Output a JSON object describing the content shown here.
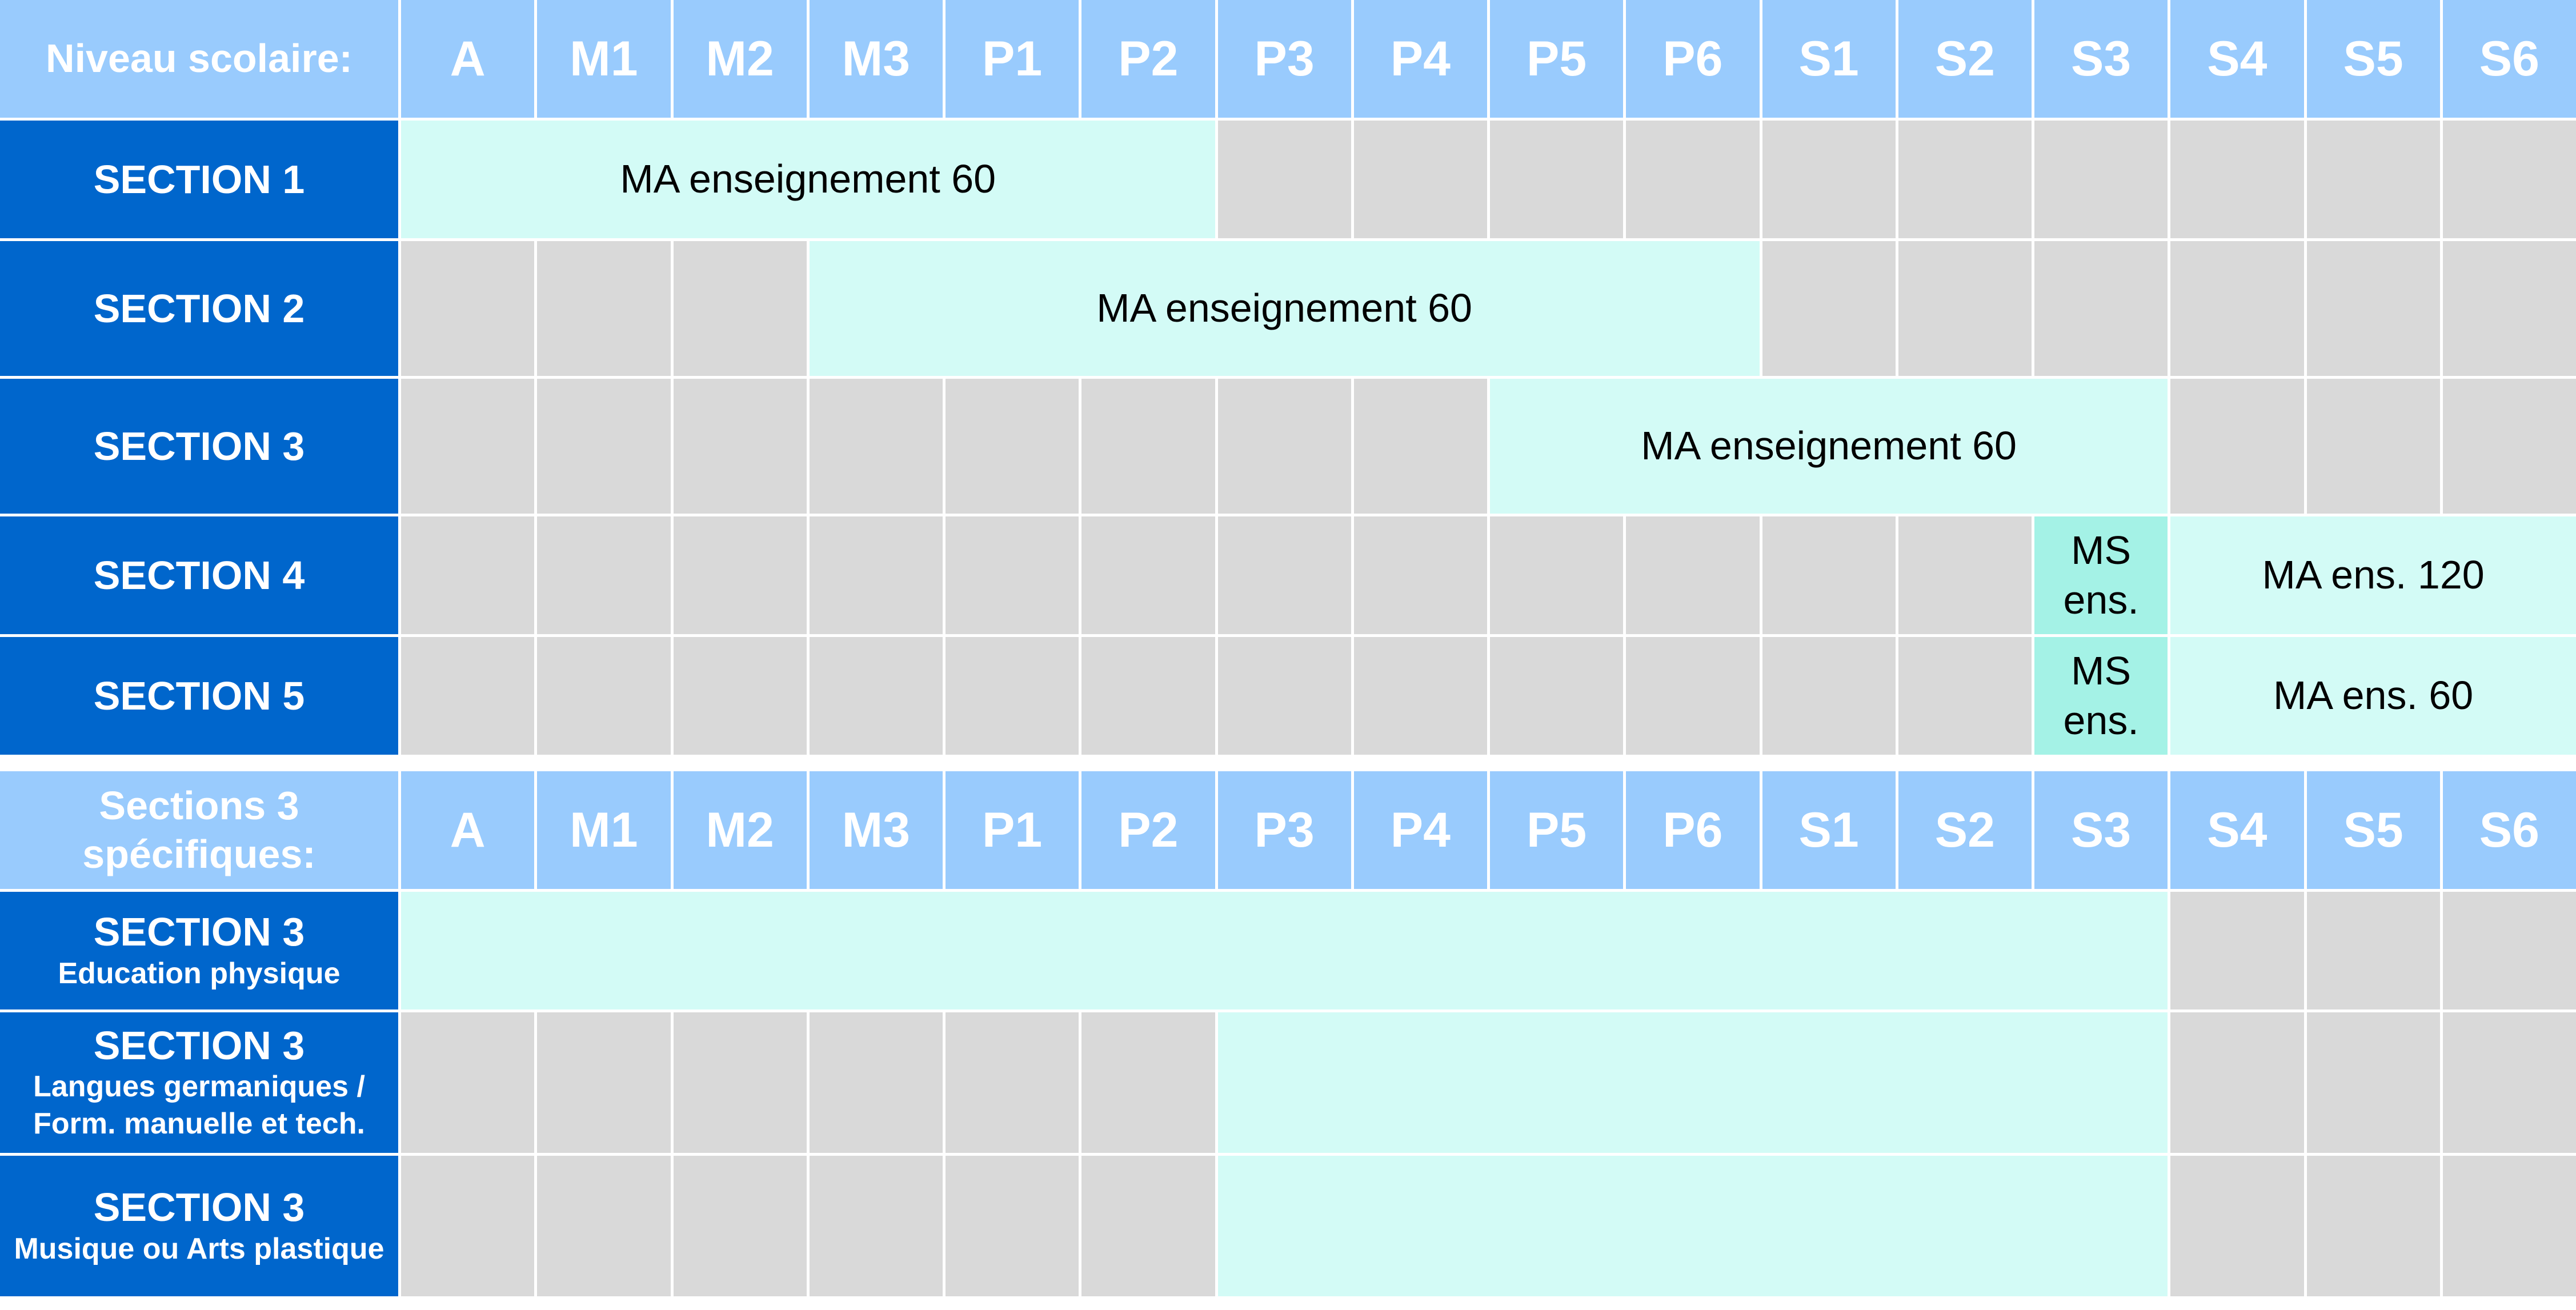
{
  "levels": [
    "A",
    "M1",
    "M2",
    "M3",
    "P1",
    "P2",
    "P3",
    "P4",
    "P5",
    "P6",
    "S1",
    "S2",
    "S3",
    "S4",
    "S5",
    "S6"
  ],
  "table1": {
    "header": "Niveau scolaire:",
    "rows": [
      {
        "label": "SECTION 1",
        "sub": "",
        "segments": [
          {
            "from": 1,
            "to": 6,
            "kind": "span",
            "text": "MA enseignement 60"
          }
        ]
      },
      {
        "label": "SECTION 2",
        "sub": "",
        "segments": [
          {
            "from": 4,
            "to": 10,
            "kind": "span",
            "text": "MA enseignement 60"
          }
        ]
      },
      {
        "label": "SECTION 3",
        "sub": "",
        "segments": [
          {
            "from": 9,
            "to": 13,
            "kind": "span",
            "text": "MA enseignement 60"
          }
        ]
      },
      {
        "label": "SECTION 4",
        "sub": "",
        "segments": [
          {
            "from": 13,
            "to": 13,
            "kind": "ms",
            "text": "MS ens."
          },
          {
            "from": 14,
            "to": 16,
            "kind": "span",
            "text": "MA ens. 120"
          }
        ]
      },
      {
        "label": "SECTION 5",
        "sub": "",
        "segments": [
          {
            "from": 13,
            "to": 13,
            "kind": "ms",
            "text": "MS ens."
          },
          {
            "from": 14,
            "to": 16,
            "kind": "span",
            "text": "MA ens. 60"
          }
        ]
      }
    ]
  },
  "table2": {
    "header": "Sections 3 spécifiques:",
    "rows": [
      {
        "label": "SECTION 3",
        "sub": "Education physique",
        "segments": [
          {
            "from": 1,
            "to": 13,
            "kind": "span",
            "text": ""
          }
        ]
      },
      {
        "label": "SECTION 3",
        "sub": "Langues germaniques / Form. manuelle et tech.",
        "segments": [
          {
            "from": 7,
            "to": 13,
            "kind": "span",
            "text": ""
          }
        ]
      },
      {
        "label": "SECTION 3",
        "sub": "Musique ou Arts plastique",
        "segments": [
          {
            "from": 7,
            "to": 13,
            "kind": "span",
            "text": ""
          }
        ]
      }
    ]
  },
  "colors": {
    "header": "#99cbfd",
    "row_label": "#0066cc",
    "inactive": "#d9d9d9",
    "span": "#d3fbf6",
    "ms": "#a4f2e6"
  }
}
